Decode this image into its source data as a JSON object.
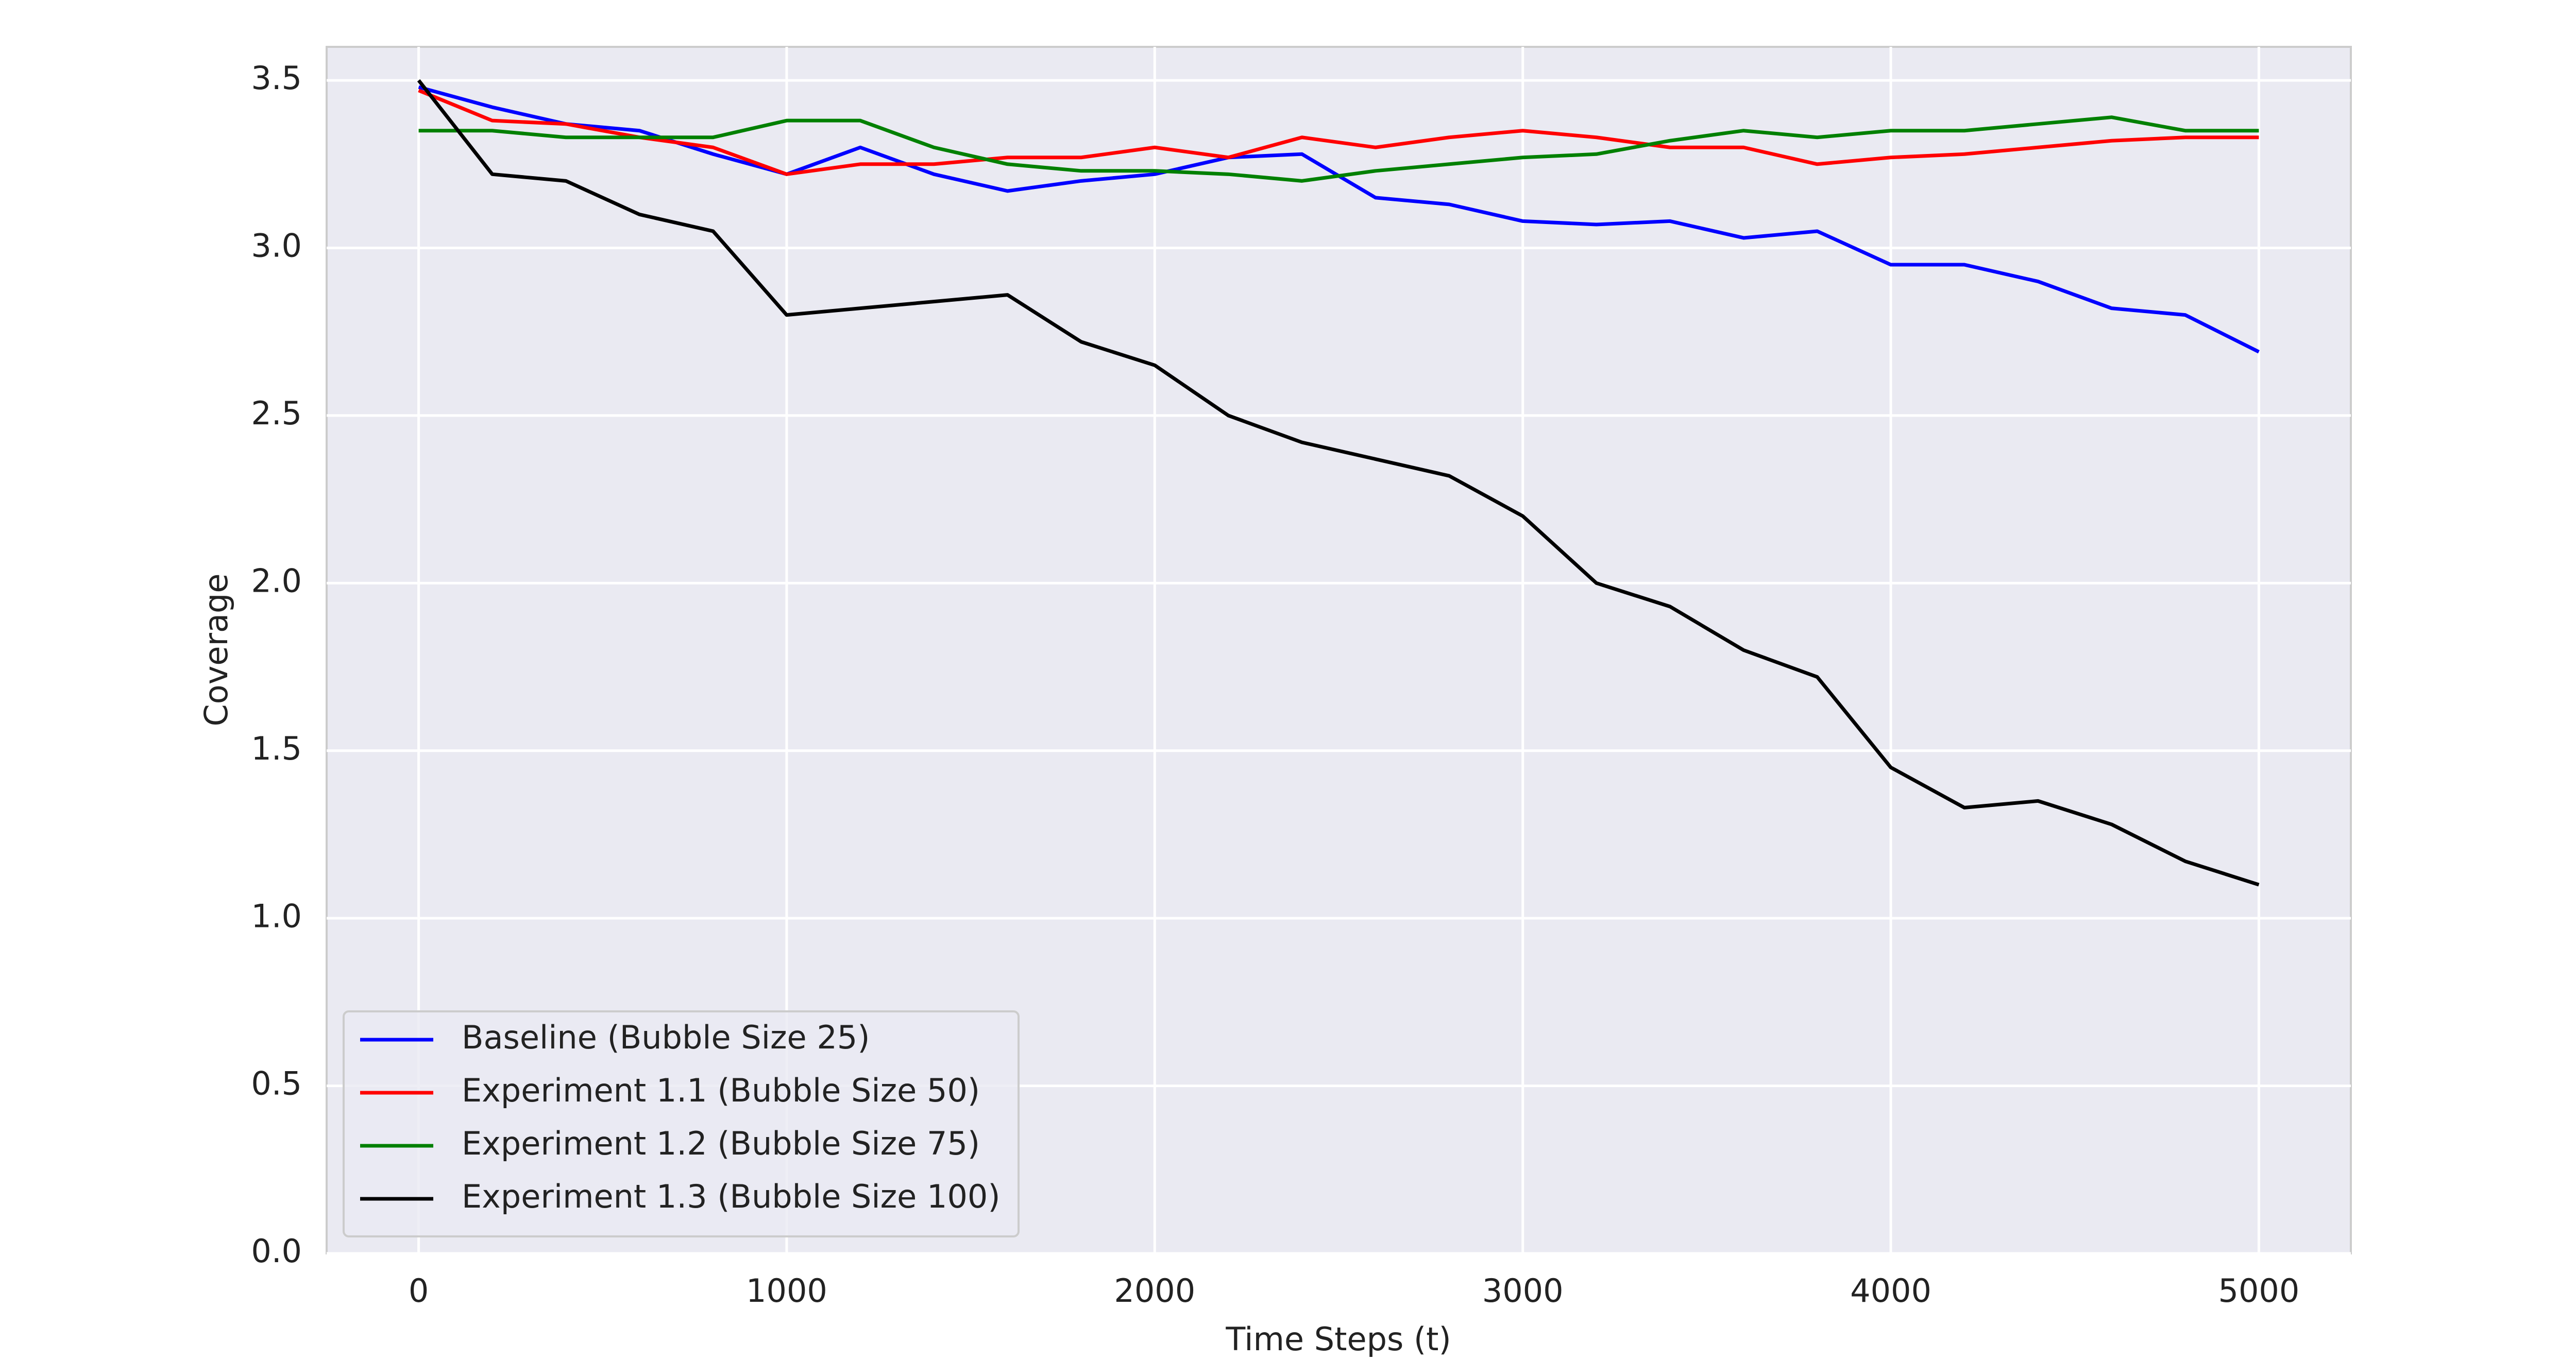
{
  "chart_data": {
    "type": "line",
    "xlabel": "Time Steps (t)",
    "ylabel": "Coverage",
    "x": [
      0,
      200,
      400,
      600,
      800,
      1000,
      1200,
      1400,
      1600,
      1800,
      2000,
      2200,
      2400,
      2600,
      2800,
      3000,
      3200,
      3400,
      3600,
      3800,
      4000,
      4200,
      4400,
      4600,
      4800,
      5000
    ],
    "series": [
      {
        "name": "Baseline (Bubble Size 25)",
        "color": "#0000ff",
        "values": [
          3.48,
          3.42,
          3.37,
          3.35,
          3.28,
          3.22,
          3.3,
          3.22,
          3.17,
          3.2,
          3.22,
          3.27,
          3.28,
          3.15,
          3.13,
          3.08,
          3.07,
          3.08,
          3.03,
          3.05,
          2.95,
          2.95,
          2.9,
          2.82,
          2.8,
          2.69
        ]
      },
      {
        "name": "Experiment 1.1 (Bubble Size 50)",
        "color": "#ff0000",
        "values": [
          3.47,
          3.38,
          3.37,
          3.33,
          3.3,
          3.22,
          3.25,
          3.25,
          3.27,
          3.27,
          3.3,
          3.27,
          3.33,
          3.3,
          3.33,
          3.35,
          3.33,
          3.3,
          3.3,
          3.25,
          3.27,
          3.28,
          3.3,
          3.32,
          3.33,
          3.33
        ]
      },
      {
        "name": "Experiment 1.2 (Bubble Size 75)",
        "color": "#008000",
        "values": [
          3.35,
          3.35,
          3.33,
          3.33,
          3.33,
          3.38,
          3.38,
          3.3,
          3.25,
          3.23,
          3.23,
          3.22,
          3.2,
          3.23,
          3.25,
          3.27,
          3.28,
          3.32,
          3.35,
          3.33,
          3.35,
          3.35,
          3.37,
          3.39,
          3.35,
          3.35
        ]
      },
      {
        "name": "Experiment 1.3 (Bubble Size 100)",
        "color": "#000000",
        "values": [
          3.5,
          3.22,
          3.2,
          3.1,
          3.05,
          2.8,
          2.82,
          2.84,
          2.86,
          2.72,
          2.65,
          2.5,
          2.42,
          2.37,
          2.32,
          2.2,
          2.0,
          1.93,
          1.8,
          1.72,
          1.45,
          1.33,
          1.35,
          1.28,
          1.17,
          1.1
        ]
      }
    ],
    "xlim": [
      -250,
      5250
    ],
    "xticks": [
      0,
      1000,
      2000,
      3000,
      4000,
      5000
    ],
    "ylim": [
      0,
      3.6
    ],
    "yticks": [
      {
        "value": 0,
        "label": "0.0"
      },
      {
        "value": 0.5,
        "label": "0.5"
      },
      {
        "value": 1,
        "label": "1.0"
      },
      {
        "value": 1.5,
        "label": "1.5"
      },
      {
        "value": 2,
        "label": "2.0"
      },
      {
        "value": 2.5,
        "label": "2.5"
      },
      {
        "value": 3,
        "label": "3.0"
      },
      {
        "value": 3.5,
        "label": "3.5"
      }
    ],
    "grid": true,
    "legend_loc": "lower left"
  }
}
